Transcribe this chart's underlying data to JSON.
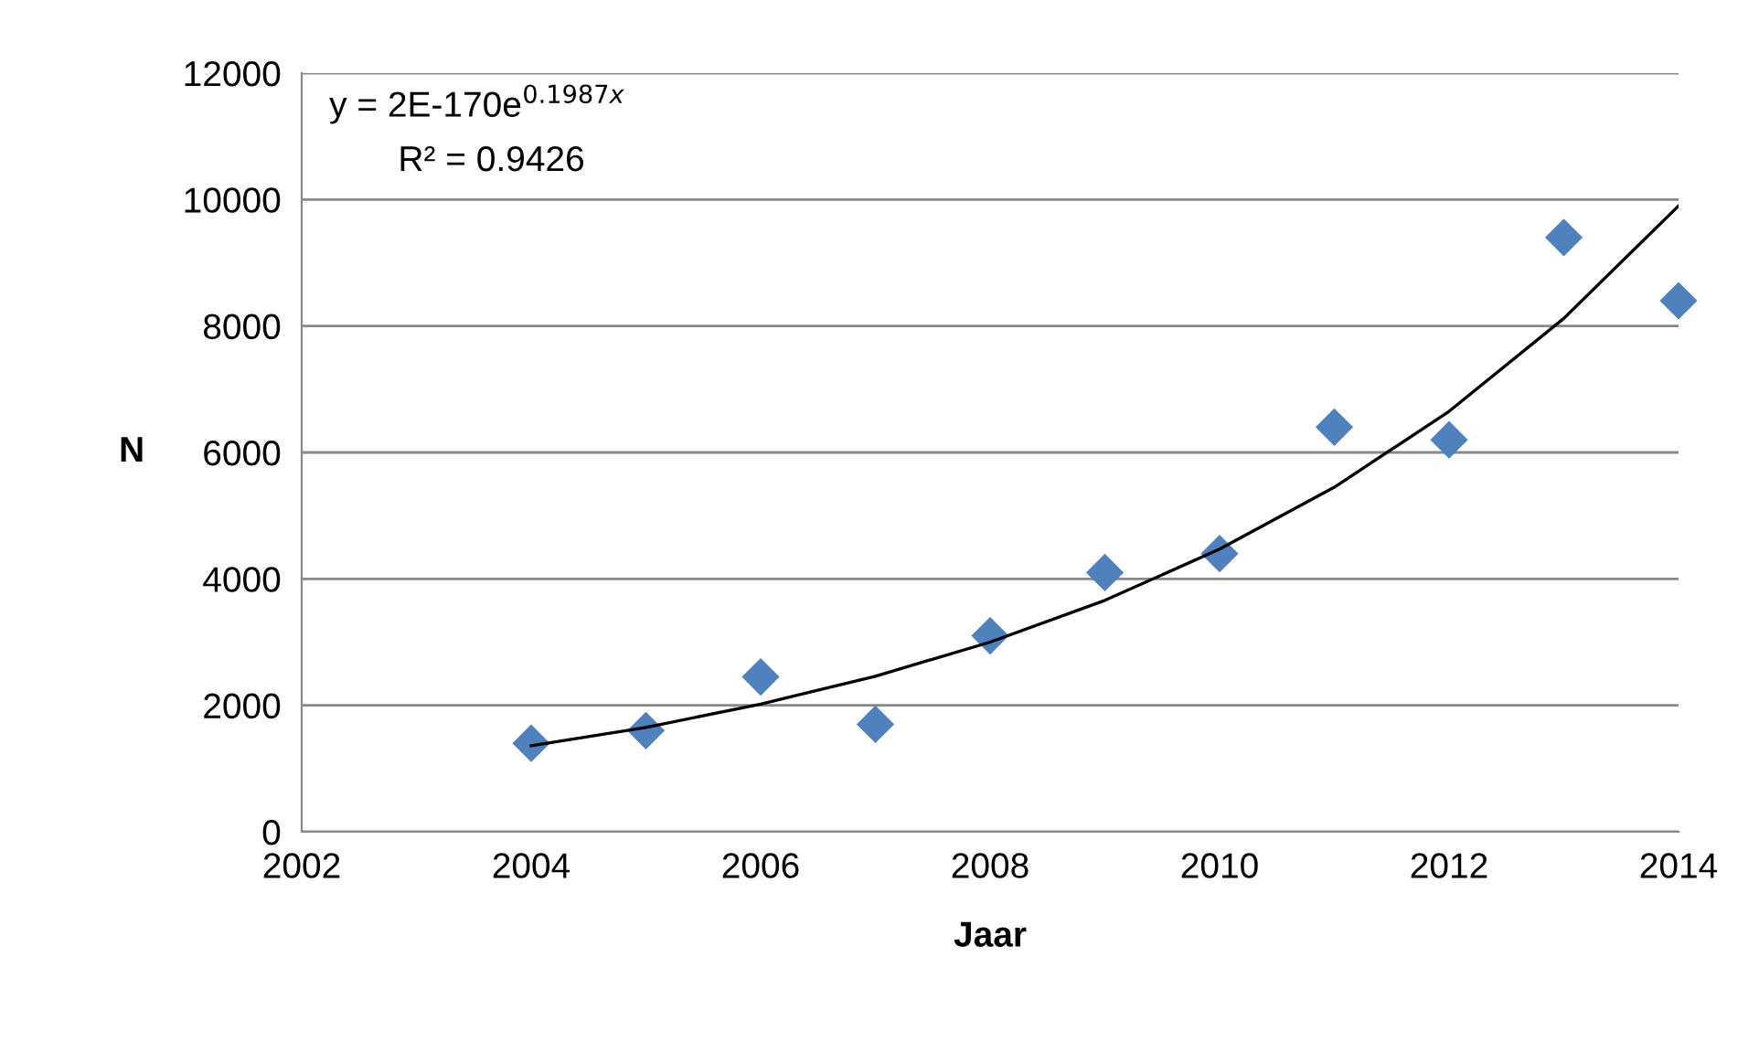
{
  "chart_data": {
    "type": "scatter",
    "xlabel": "Jaar",
    "ylabel": "N",
    "xlim": [
      2002,
      2014
    ],
    "xticks": [
      2002,
      2004,
      2006,
      2008,
      2010,
      2012,
      2014
    ],
    "ylim": [
      0,
      12000
    ],
    "yticks": [
      0,
      2000,
      4000,
      6000,
      8000,
      10000,
      12000
    ],
    "grid": "y",
    "legend": false,
    "series": [
      {
        "color": "#4f81bd",
        "marker": "diamond",
        "x": [
          2004,
          2005,
          2006,
          2007,
          2008,
          2009,
          2010,
          2011,
          2012,
          2013,
          2014
        ],
        "values": [
          1400,
          1600,
          2450,
          1700,
          3100,
          4100,
          4400,
          6400,
          6200,
          9400,
          8400
        ]
      },
      {
        "type": "line",
        "color": "#000000",
        "marker": "none",
        "line_style": "solid",
        "x": [
          2004,
          2005,
          2006,
          2007,
          2008,
          2009,
          2010,
          2011,
          2012,
          2013,
          2014
        ],
        "values": [
          1360,
          1650,
          2020,
          2460,
          3000,
          3660,
          4470,
          5450,
          6650,
          8120,
          9900
        ]
      }
    ],
    "annotations": [
      "y = 2E-170e$^{0.1987x}$",
      "R² = 0.9426"
    ]
  }
}
